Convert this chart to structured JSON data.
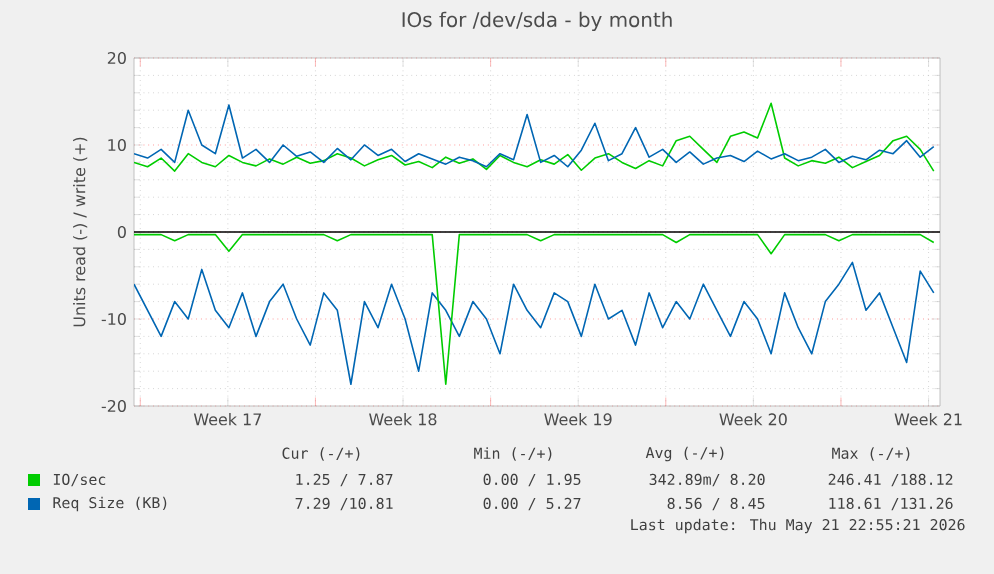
{
  "chart_data": {
    "type": "line",
    "title": "IOs for /dev/sda - by month",
    "ylabel": "Units read (-) / write (+)",
    "x": [
      "2026-04-19T18:00",
      "2026-04-20T07:00",
      "2026-04-20T20:00",
      "2026-04-21T09:00",
      "2026-04-21T22:00",
      "2026-04-22T11:00",
      "2026-04-23T00:00",
      "2026-04-23T13:00",
      "2026-04-24T02:00",
      "2026-04-24T15:00",
      "2026-04-25T04:00",
      "2026-04-25T17:00",
      "2026-04-26T06:00",
      "2026-04-26T19:00",
      "2026-04-27T08:00",
      "2026-04-27T21:00",
      "2026-04-28T10:00",
      "2026-04-28T23:00",
      "2026-04-29T12:00",
      "2026-04-30T01:00",
      "2026-04-30T14:00",
      "2026-05-01T03:00",
      "2026-05-01T16:00",
      "2026-05-02T05:00",
      "2026-05-02T18:00",
      "2026-05-03T07:00",
      "2026-05-03T20:00",
      "2026-05-04T09:00",
      "2026-05-04T22:00",
      "2026-05-05T11:00",
      "2026-05-06T00:00",
      "2026-05-06T13:00",
      "2026-05-07T02:00",
      "2026-05-07T15:00",
      "2026-05-08T04:00",
      "2026-05-08T17:00",
      "2026-05-09T06:00",
      "2026-05-09T19:00",
      "2026-05-10T08:00",
      "2026-05-10T21:00",
      "2026-05-11T10:00",
      "2026-05-11T23:00",
      "2026-05-12T12:00",
      "2026-05-13T01:00",
      "2026-05-13T14:00",
      "2026-05-14T03:00",
      "2026-05-14T16:00",
      "2026-05-15T05:00",
      "2026-05-15T18:00",
      "2026-05-16T07:00",
      "2026-05-16T20:00",
      "2026-05-17T09:00",
      "2026-05-17T22:00",
      "2026-05-18T11:00",
      "2026-05-19T00:00",
      "2026-05-19T13:00",
      "2026-05-20T02:00",
      "2026-05-20T15:00",
      "2026-05-21T04:00",
      "2026-05-21T17:00"
    ],
    "series": [
      {
        "color": "#0066b3",
        "values": [
          -6,
          -9,
          -12,
          -8,
          -10,
          -4.3,
          -9,
          -11,
          -7,
          -12,
          -8,
          -6,
          -10,
          -13,
          -7,
          -9,
          -17.5,
          -8,
          -11,
          -6,
          -10,
          -16,
          -7,
          -9,
          -12,
          -8,
          -10,
          -14,
          -6,
          -9,
          -11,
          -7,
          -8,
          -12,
          -6,
          -10,
          -9,
          -13,
          -7,
          -11,
          -8,
          -10,
          -6,
          -9,
          -12,
          -8,
          -10,
          -14,
          -7,
          -11,
          -14,
          -8,
          -6,
          -3.5,
          -9,
          -7,
          -11,
          -15,
          -4.5,
          -7
        ]
      },
      {
        "color": "#00cc00",
        "values": [
          -0.3,
          -0.3,
          -0.3,
          -1,
          -0.3,
          -0.3,
          -0.3,
          -2.2,
          -0.3,
          -0.3,
          -0.3,
          -0.3,
          -0.3,
          -0.3,
          -0.3,
          -1,
          -0.3,
          -0.3,
          -0.3,
          -0.3,
          -0.3,
          -0.3,
          -0.3,
          -17.5,
          -0.3,
          -0.3,
          -0.3,
          -0.3,
          -0.3,
          -0.3,
          -1,
          -0.3,
          -0.3,
          -0.3,
          -0.3,
          -0.3,
          -0.3,
          -0.3,
          -0.3,
          -0.3,
          -1.2,
          -0.3,
          -0.3,
          -0.3,
          -0.3,
          -0.3,
          -0.3,
          -2.5,
          -0.3,
          -0.3,
          -0.3,
          -0.3,
          -1,
          -0.3,
          -0.3,
          -0.3,
          -0.3,
          -0.3,
          -0.3,
          -1.2
        ]
      },
      {
        "name": "IO/sec",
        "color": "#00cc00",
        "values": [
          8,
          7.5,
          8.5,
          7,
          9,
          8,
          7.5,
          8.8,
          8,
          7.6,
          8.4,
          7.8,
          8.6,
          7.9,
          8.2,
          9,
          8.5,
          7.6,
          8.3,
          8.8,
          7.7,
          8.1,
          7.4,
          8.6,
          7.9,
          8.4,
          7.2,
          8.8,
          8,
          7.5,
          8.3,
          7.8,
          8.9,
          7.1,
          8.5,
          9,
          8,
          7.3,
          8.2,
          7.6,
          10.5,
          11,
          9.5,
          8,
          11,
          11.5,
          10.8,
          14.8,
          8.5,
          7.6,
          8.2,
          7.9,
          8.6,
          7.4,
          8.1,
          8.8,
          10.5,
          11,
          9.5,
          7
        ]
      },
      {
        "name": "Req Size (KB)",
        "color": "#0066b3",
        "values": [
          9,
          8.5,
          9.5,
          8,
          14,
          10,
          9,
          14.6,
          8.5,
          9.5,
          8,
          10,
          8.7,
          9.2,
          8,
          9.6,
          8.3,
          10,
          8.8,
          9.5,
          8.1,
          9,
          8.4,
          7.8,
          8.6,
          8.2,
          7.5,
          9,
          8.3,
          13.5,
          8,
          8.8,
          7.5,
          9.4,
          12.5,
          8.2,
          9,
          12,
          8.6,
          9.5,
          8,
          9.2,
          7.8,
          8.5,
          8.8,
          8.1,
          9.3,
          8.4,
          9,
          8.2,
          8.6,
          9.5,
          8,
          8.7,
          8.3,
          9.4,
          9,
          10.5,
          8.6,
          9.8
        ]
      }
    ],
    "xlim": [
      "2026-04-19T18:00",
      "2026-05-21T23:00"
    ],
    "xticks": [
      {
        "value": "2026-04-20",
        "label": null
      },
      {
        "value": "2026-04-23T12:00",
        "label": "Week 17"
      },
      {
        "value": "2026-04-27",
        "label": null
      },
      {
        "value": "2026-04-30T12:00",
        "label": "Week 18"
      },
      {
        "value": "2026-05-04",
        "label": null
      },
      {
        "value": "2026-05-07T12:00",
        "label": "Week 19"
      },
      {
        "value": "2026-05-11",
        "label": null
      },
      {
        "value": "2026-05-14T12:00",
        "label": "Week 20"
      },
      {
        "value": "2026-05-18",
        "label": null
      },
      {
        "value": "2026-05-21T12:00",
        "label": "Week 21"
      }
    ],
    "ylim": [
      -20,
      20
    ],
    "yticks": [
      -20,
      -10,
      0,
      10,
      20
    ],
    "grid": true,
    "legend": "bottom",
    "line_style": "solid",
    "marker": "none",
    "ref_lines": [
      {
        "axis": "y",
        "value": 0,
        "color": "#000000"
      }
    ],
    "annotations": [
      "Cur (-/+)",
      "Min (-/+)",
      "Avg (-/+)",
      "Max (-/+)",
      "1.25 / 7.87",
      "0.00 / 1.95",
      "342.89m/ 8.20",
      "246.41 /188.12",
      "7.29 /10.81",
      "0.00 / 5.27",
      "8.56 / 8.45",
      "118.61 /131.26",
      "Last update: Thu May 21 22:55:21 2026"
    ]
  }
}
